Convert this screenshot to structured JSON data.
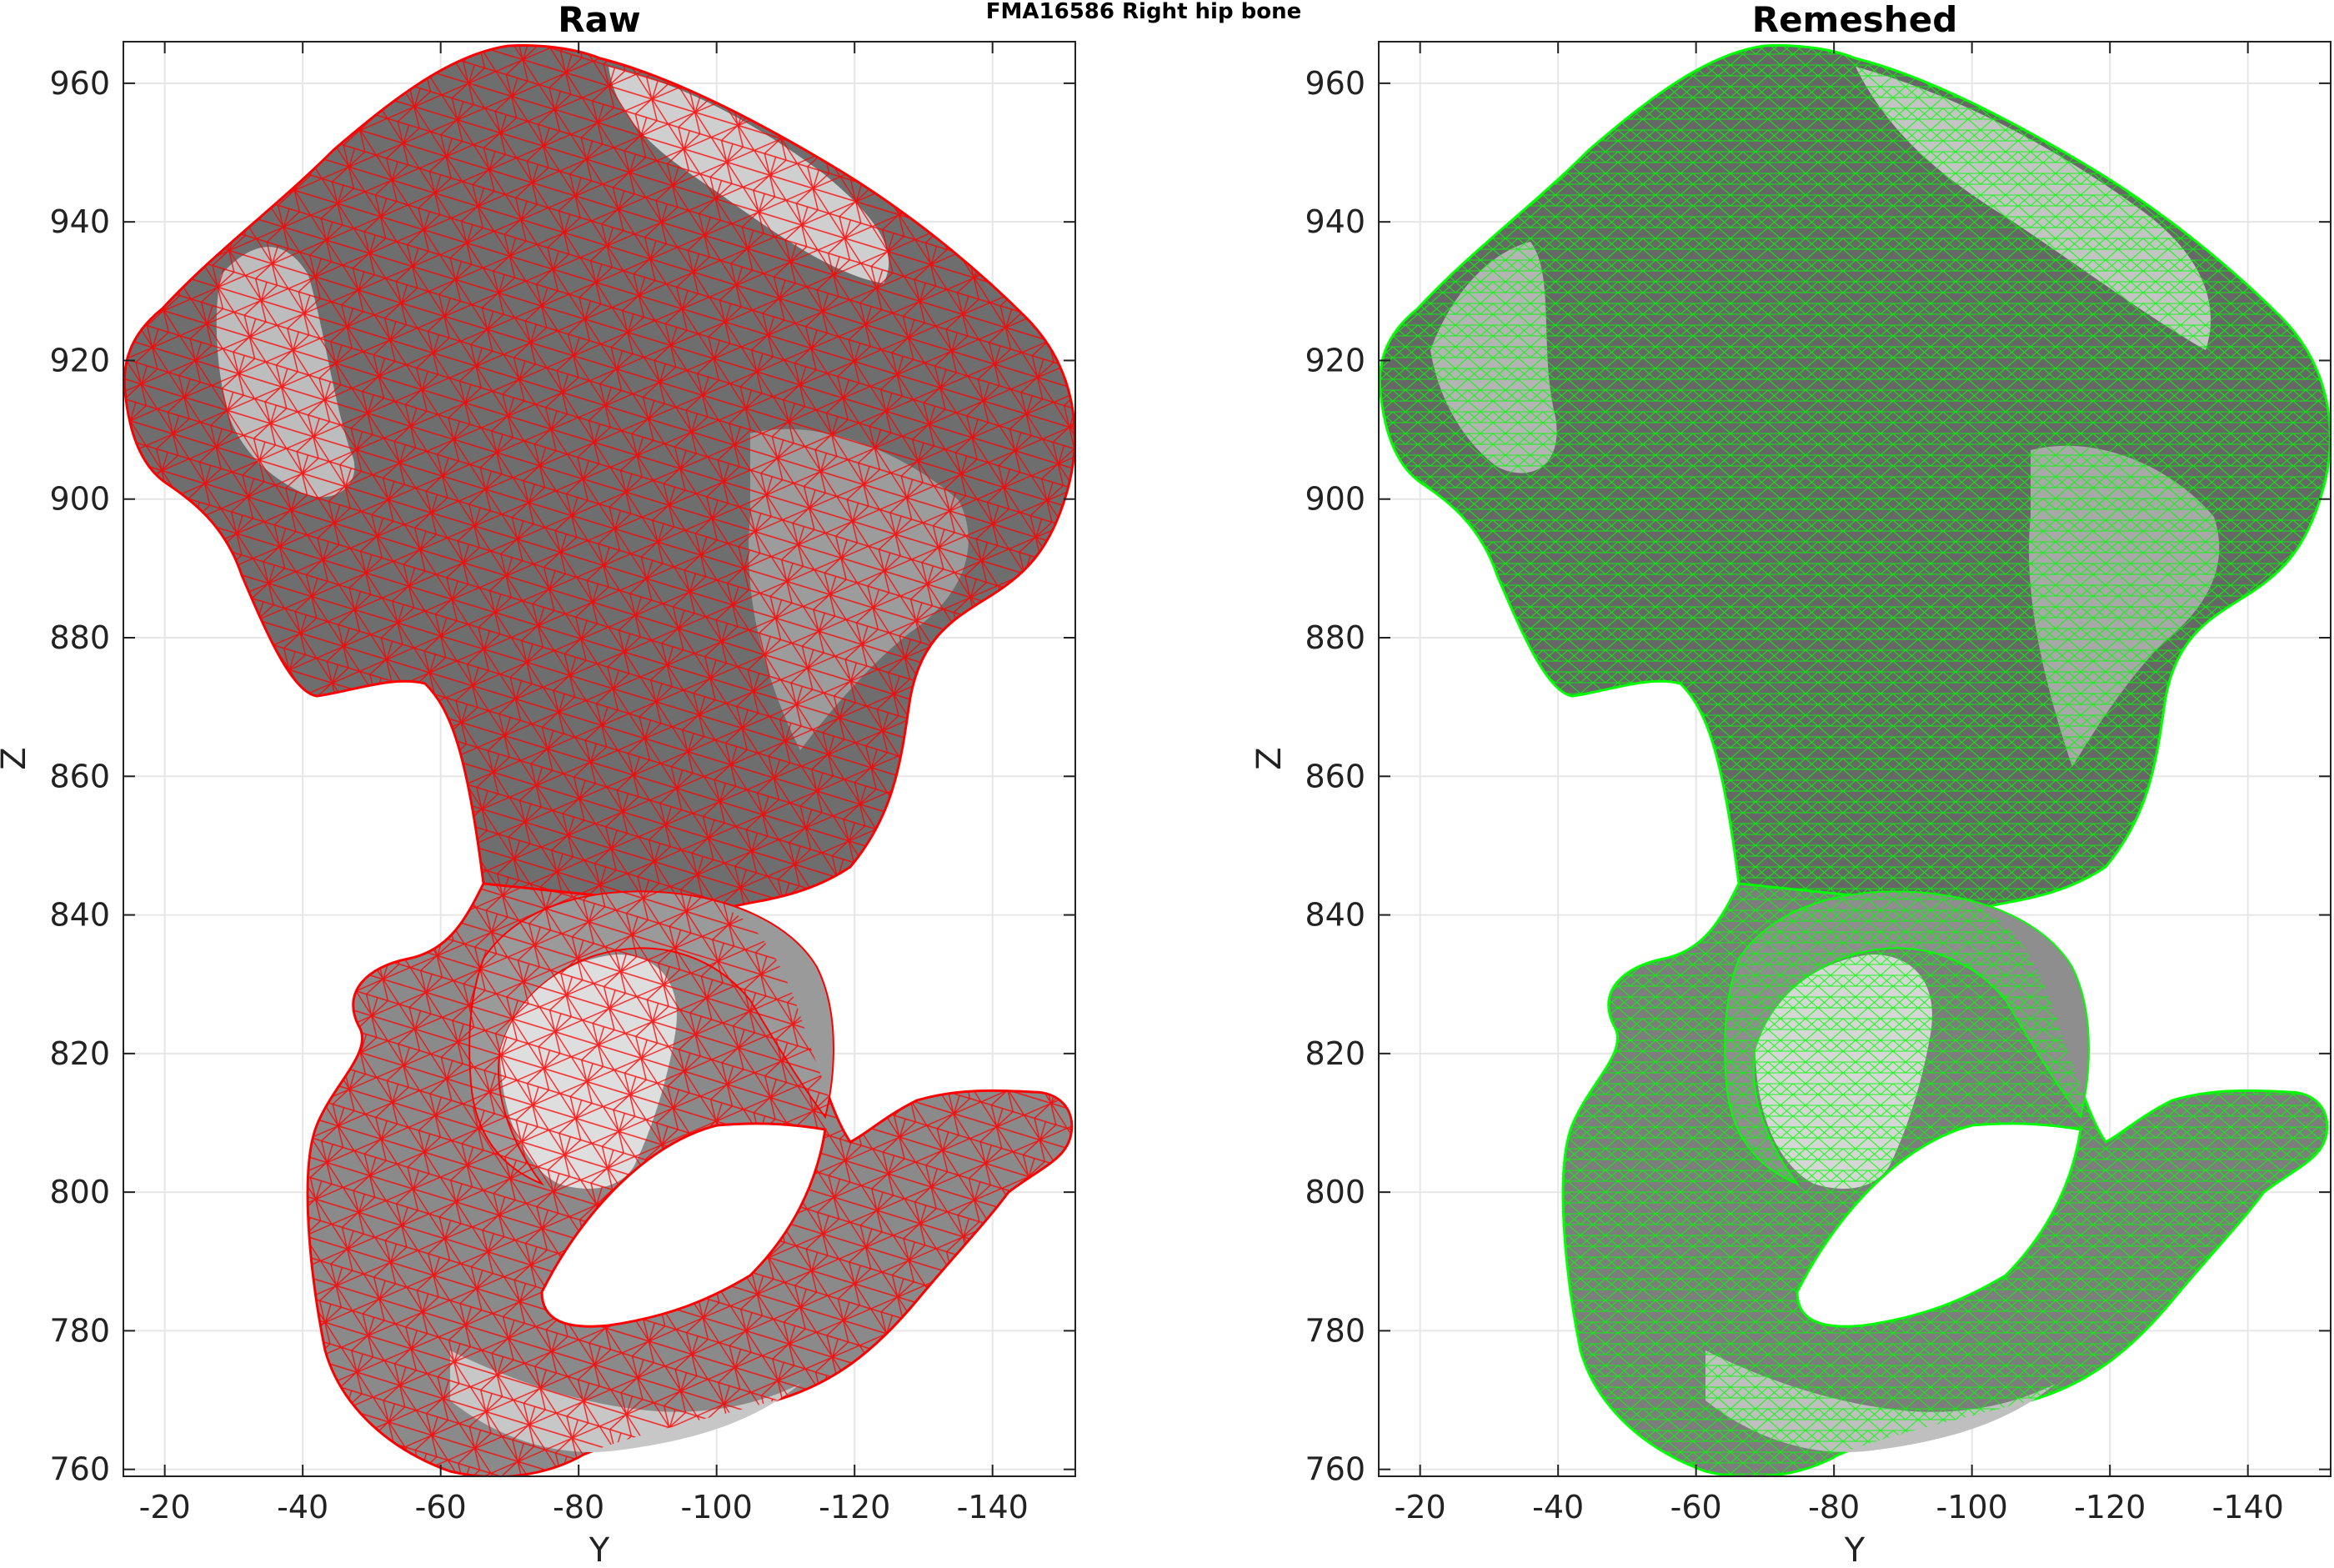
{
  "figure": {
    "suptitle": "FMA16586 Right hip bone"
  },
  "colors": {
    "raw_edge": "#ff0000",
    "remeshed_edge": "#00ff00",
    "face_dark": "#6b6b6b",
    "face_mid": "#9a9a9a",
    "face_light": "#d2d2d2",
    "grid": "#e6e6e6",
    "axis": "#222222"
  },
  "chart_data": [
    {
      "type": "mesh",
      "title": "Raw",
      "xlabel": "Y",
      "ylabel": "Z",
      "xlim": [
        -14,
        -152
      ],
      "ylim": [
        759,
        966
      ],
      "xticks": [
        -20,
        -40,
        -60,
        -80,
        -100,
        -120,
        -140
      ],
      "yticks": [
        760,
        780,
        800,
        820,
        840,
        860,
        880,
        900,
        920,
        940,
        960
      ],
      "grid": true,
      "edge_color": "red",
      "mesh": "irregular triangulation"
    },
    {
      "type": "mesh",
      "title": "Remeshed",
      "xlabel": "Y",
      "ylabel": "Z",
      "xlim": [
        -14,
        -152
      ],
      "ylim": [
        759,
        966
      ],
      "xticks": [
        -20,
        -40,
        -60,
        -80,
        -100,
        -120,
        -140
      ],
      "yticks": [
        760,
        780,
        800,
        820,
        840,
        860,
        880,
        900,
        920,
        940,
        960
      ],
      "grid": true,
      "edge_color": "green",
      "mesh": "uniform triangulation"
    }
  ]
}
